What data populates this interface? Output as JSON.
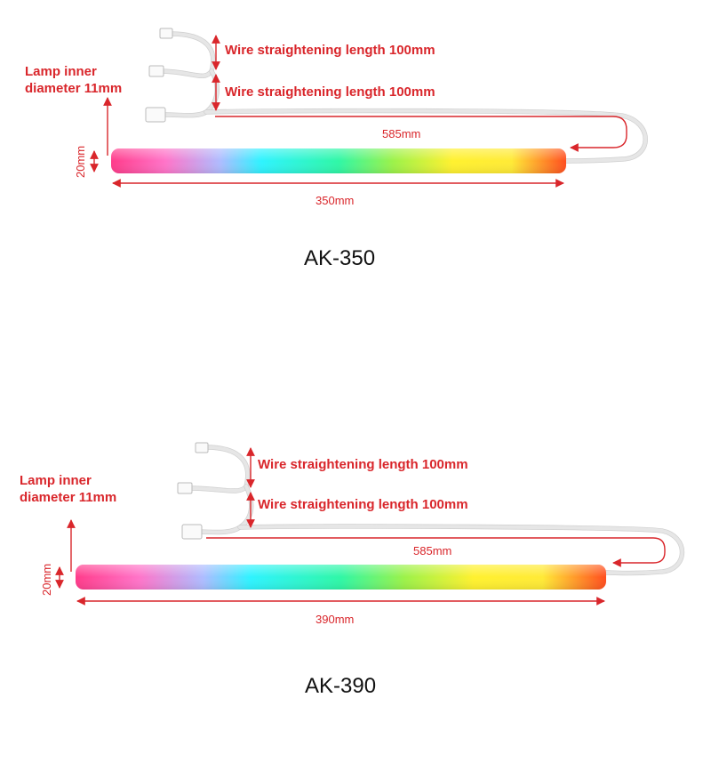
{
  "products": [
    {
      "model": "AK-350",
      "lamp_inner_diameter": [
        "Lamp inner",
        "diameter 11mm"
      ],
      "wire_label_1": "Wire straightening length 100mm",
      "wire_label_2": "Wire straightening length 100mm",
      "cable_length": "585mm",
      "tube_height": "20mm",
      "tube_length": "350mm"
    },
    {
      "model": "AK-390",
      "lamp_inner_diameter": [
        "Lamp inner",
        "diameter 11mm"
      ],
      "wire_label_1": "Wire straightening length 100mm",
      "wire_label_2": "Wire straightening length 100mm",
      "cable_length": "585mm",
      "tube_height": "20mm",
      "tube_length": "390mm"
    }
  ],
  "colors": {
    "dimension": "#d9262b",
    "wire": "#e6e6e6",
    "gradient": [
      "#ff3b8a",
      "#ff74c9",
      "#aebcff",
      "#2ef3ff",
      "#2ff7a6",
      "#9cf249",
      "#fff12f",
      "#ffea36",
      "#ff4d1e"
    ]
  }
}
